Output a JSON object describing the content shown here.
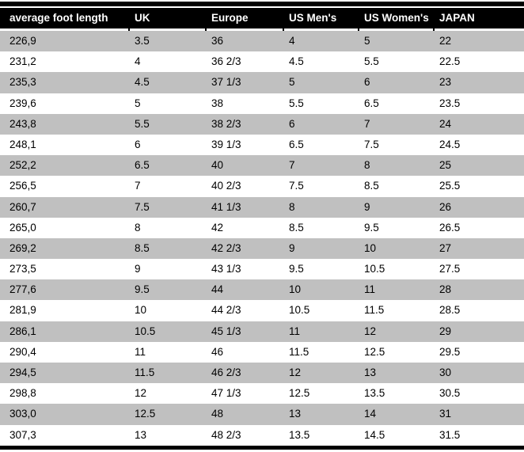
{
  "table": {
    "columns": [
      {
        "label": "average foot length"
      },
      {
        "label": "UK"
      },
      {
        "label": "Europe"
      },
      {
        "label": "US Men's"
      },
      {
        "label": "US Women's"
      },
      {
        "label": "JAPAN"
      }
    ],
    "rows": [
      [
        "226,9",
        "3.5",
        "36",
        "4",
        "5",
        "22"
      ],
      [
        "231,2",
        "4",
        "36 2/3",
        "4.5",
        "5.5",
        "22.5"
      ],
      [
        "235,3",
        "4.5",
        "37 1/3",
        "5",
        "6",
        "23"
      ],
      [
        "239,6",
        "5",
        "38",
        "5.5",
        "6.5",
        "23.5"
      ],
      [
        "243,8",
        "5.5",
        "38 2/3",
        "6",
        "7",
        "24"
      ],
      [
        "248,1",
        "6",
        "39 1/3",
        "6.5",
        "7.5",
        "24.5"
      ],
      [
        "252,2",
        "6.5",
        "40",
        "7",
        "8",
        "25"
      ],
      [
        "256,5",
        "7",
        "40 2/3",
        "7.5",
        "8.5",
        "25.5"
      ],
      [
        "260,7",
        "7.5",
        "41 1/3",
        "8",
        "9",
        "26"
      ],
      [
        "265,0",
        "8",
        "42",
        "8.5",
        "9.5",
        "26.5"
      ],
      [
        "269,2",
        "8.5",
        "42 2/3",
        "9",
        "10",
        "27"
      ],
      [
        "273,5",
        "9",
        "43 1/3",
        "9.5",
        "10.5",
        "27.5"
      ],
      [
        "277,6",
        "9.5",
        "44",
        "10",
        "11",
        "28"
      ],
      [
        "281,9",
        "10",
        "44 2/3",
        "10.5",
        "11.5",
        "28.5"
      ],
      [
        "286,1",
        "10.5",
        "45 1/3",
        "11",
        "12",
        "29"
      ],
      [
        "290,4",
        "11",
        "46",
        "11.5",
        "12.5",
        "29.5"
      ],
      [
        "294,5",
        "11.5",
        "46 2/3",
        "12",
        "13",
        "30"
      ],
      [
        "298,8",
        "12",
        "47 1/3",
        "12.5",
        "13.5",
        "30.5"
      ],
      [
        "303,0",
        "12.5",
        "48",
        "13",
        "14",
        "31"
      ],
      [
        "307,3",
        "13",
        "48 2/3",
        "13.5",
        "14.5",
        "31.5"
      ]
    ],
    "colors": {
      "header_bg": "#000000",
      "header_text": "#ffffff",
      "row_alt_bg": "#c0c0c0",
      "row_bg": "#ffffff",
      "text": "#000000",
      "rule": "#000000"
    }
  }
}
